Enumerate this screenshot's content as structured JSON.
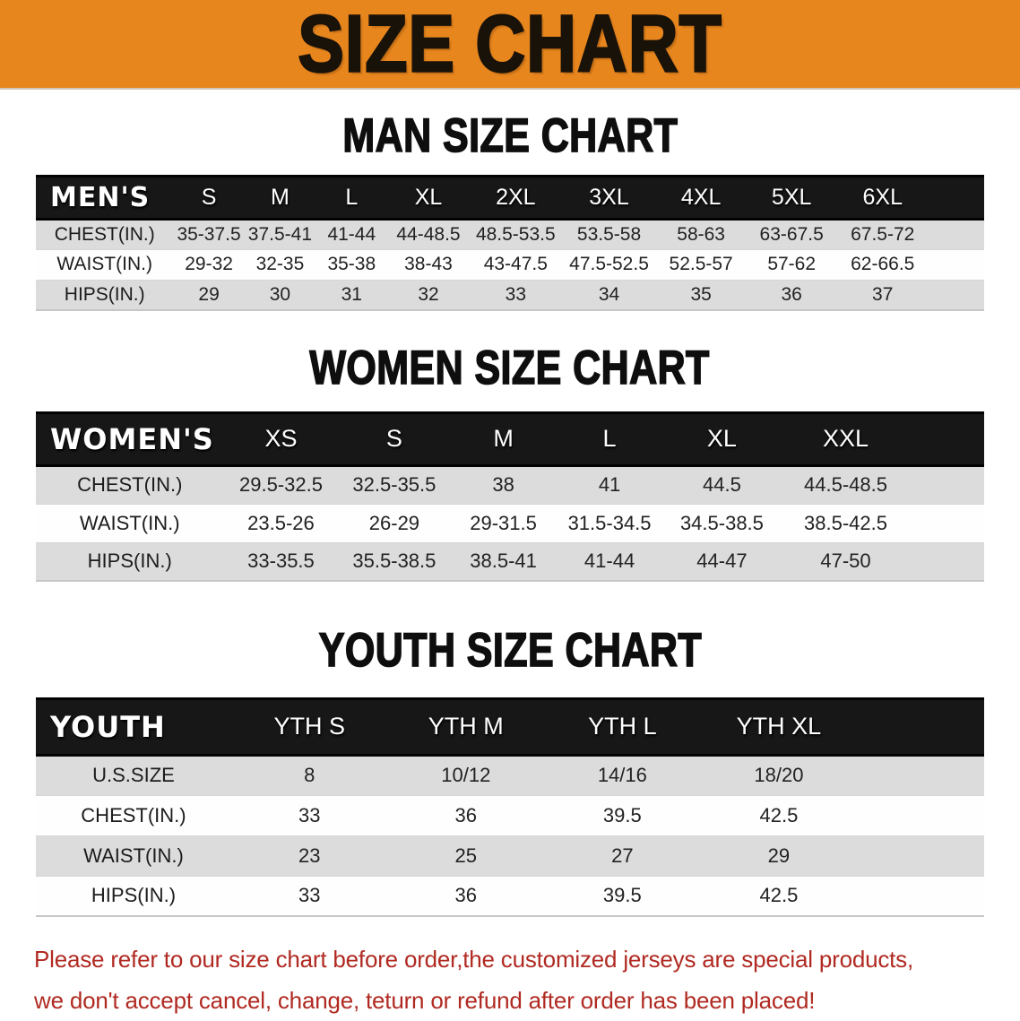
{
  "banner": {
    "title": "SIZE CHART"
  },
  "sections": [
    {
      "heading": "MAN SIZE CHART"
    },
    {
      "heading": "WOMEN SIZE CHART"
    },
    {
      "heading": "YOUTH SIZE CHART"
    }
  ],
  "chart_data": [
    {
      "type": "table",
      "key": "men",
      "corner_label": "MEN'S",
      "columns": [
        "S",
        "M",
        "L",
        "XL",
        "2XL",
        "3XL",
        "4XL",
        "5XL",
        "6XL"
      ],
      "rows": [
        {
          "label": "CHEST(IN.)",
          "values": [
            "35-37.5",
            "37.5-41",
            "41-44",
            "44-48.5",
            "48.5-53.5",
            "53.5-58",
            "58-63",
            "63-67.5",
            "67.5-72"
          ]
        },
        {
          "label": "WAIST(IN.)",
          "values": [
            "29-32",
            "32-35",
            "35-38",
            "38-43",
            "43-47.5",
            "47.5-52.5",
            "52.5-57",
            "57-62",
            "62-66.5"
          ]
        },
        {
          "label": "HIPS(IN.)",
          "values": [
            "29",
            "30",
            "31",
            "32",
            "33",
            "34",
            "35",
            "36",
            "37"
          ]
        }
      ]
    },
    {
      "type": "table",
      "key": "women",
      "corner_label": "WOMEN'S",
      "columns": [
        "XS",
        "S",
        "M",
        "L",
        "XL",
        "XXL"
      ],
      "rows": [
        {
          "label": "CHEST(IN.)",
          "values": [
            "29.5-32.5",
            "32.5-35.5",
            "38",
            "41",
            "44.5",
            "44.5-48.5"
          ]
        },
        {
          "label": "WAIST(IN.)",
          "values": [
            "23.5-26",
            "26-29",
            "29-31.5",
            "31.5-34.5",
            "34.5-38.5",
            "38.5-42.5"
          ]
        },
        {
          "label": "HIPS(IN.)",
          "values": [
            "33-35.5",
            "35.5-38.5",
            "38.5-41",
            "41-44",
            "44-47",
            "47-50"
          ]
        }
      ]
    },
    {
      "type": "table",
      "key": "youth",
      "corner_label": "YOUTH",
      "columns": [
        "YTH S",
        "YTH M",
        "YTH L",
        "YTH XL"
      ],
      "rows": [
        {
          "label": "U.S.SIZE",
          "values": [
            "8",
            "10/12",
            "14/16",
            "18/20"
          ]
        },
        {
          "label": "CHEST(IN.)",
          "values": [
            "33",
            "36",
            "39.5",
            "42.5"
          ]
        },
        {
          "label": "WAIST(IN.)",
          "values": [
            "23",
            "25",
            "27",
            "29"
          ]
        },
        {
          "label": "HIPS(IN.)",
          "values": [
            "33",
            "36",
            "39.5",
            "42.5"
          ]
        }
      ]
    }
  ],
  "disclaimer": {
    "line1": "Please refer to our size chart before order,the customized jerseys are special products,",
    "line2": "we don't accept cancel, change, teturn or refund after order has been placed!"
  },
  "palette": {
    "accent_orange": "#E8861E",
    "band_black": "#171717",
    "stripe_gray": "#DCDCDC",
    "disclaimer_red": "#B02A22",
    "text_dark": "#222222"
  }
}
